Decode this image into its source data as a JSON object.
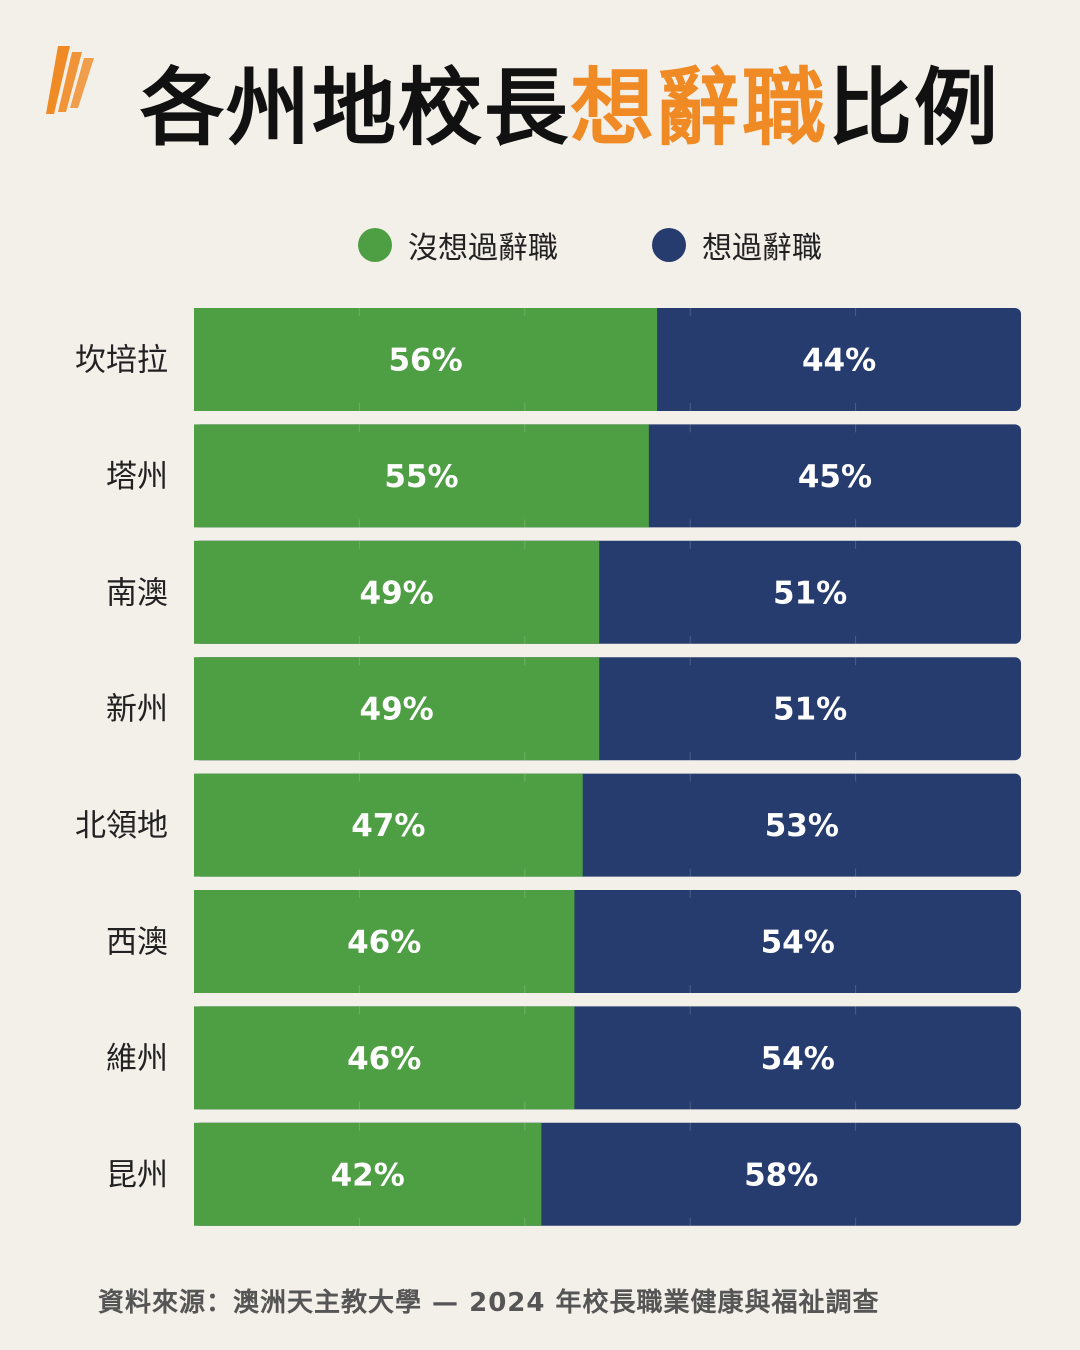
{
  "title": {
    "main": "各州地校長",
    "highlight": "想辭職",
    "suffix": "比例"
  },
  "colors": {
    "no": "#4e9e44",
    "yes": "#263c6e",
    "highlight": "#f08a24"
  },
  "legend": [
    {
      "label": "沒想過辭職",
      "color": "#4e9e44"
    },
    {
      "label": "想過辭職",
      "color": "#263c6e"
    }
  ],
  "chart_data": {
    "type": "bar",
    "orientation": "horizontal",
    "stacked": true,
    "normalized": true,
    "title": "各州地校長想辭職比例",
    "categories": [
      "坎培拉",
      "塔州",
      "南澳",
      "新州",
      "北領地",
      "西澳",
      "維州",
      "昆州"
    ],
    "series": [
      {
        "name": "沒想過辭職",
        "values": [
          56,
          55,
          49,
          49,
          47,
          46,
          46,
          42
        ],
        "labels": [
          "56%",
          "55%",
          "49%",
          "49%",
          "47%",
          "46%",
          "46%",
          "42%"
        ]
      },
      {
        "name": "想過辭職",
        "values": [
          44,
          45,
          51,
          51,
          53,
          54,
          54,
          58
        ],
        "labels": [
          "44%",
          "45%",
          "51%",
          "51%",
          "53%",
          "54%",
          "54%",
          "58%"
        ]
      }
    ],
    "xlim": [
      0,
      100
    ],
    "grid": true,
    "legend": "top"
  },
  "source": "資料來源：澳洲天主教大學 — 2024 年校長職業健康與福祉調查"
}
